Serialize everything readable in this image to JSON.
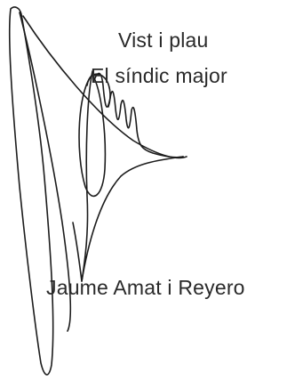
{
  "approval": {
    "line1": "Vist i plau",
    "line2": "El síndic major"
  },
  "signer": {
    "name": "Jaume Amat i Reyero"
  },
  "signature": {
    "icon": "handwritten-signature",
    "ink_color": "#1c1c1c"
  }
}
